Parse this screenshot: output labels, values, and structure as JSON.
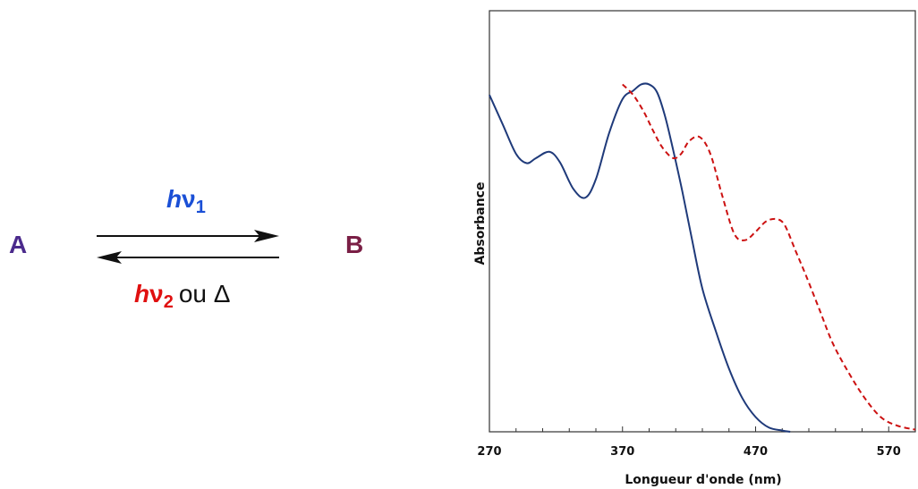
{
  "scheme": {
    "species_a": "A",
    "species_b": "B",
    "forward_h": "h",
    "forward_nu": "ν",
    "forward_sub": "1",
    "reverse_h": "h",
    "reverse_nu": "ν",
    "reverse_sub": "2",
    "reverse_suffix": "ou Δ",
    "colors": {
      "a": "#4b2a8c",
      "b": "#7a1f45",
      "forward": "#1a4fd6",
      "reverse": "#e01010"
    }
  },
  "chart_data": {
    "type": "line",
    "title": "",
    "xlabel": "Longueur d'onde (nm)",
    "ylabel": "Absorbance",
    "xlim": [
      270,
      590
    ],
    "ylim": [
      0,
      1.0
    ],
    "xticks": [
      270,
      370,
      470,
      570
    ],
    "grid": false,
    "legend": "none",
    "series": [
      {
        "color": "#1f3a7a",
        "style": "solid",
        "x": [
          270,
          280,
          290,
          298,
          305,
          315,
          323,
          333,
          342,
          350,
          360,
          370,
          378,
          384,
          390,
          396,
          402,
          408,
          415,
          422,
          430,
          440,
          450,
          460,
          470,
          480,
          490,
          496
        ],
        "y": [
          0.8,
          0.73,
          0.66,
          0.638,
          0.65,
          0.665,
          0.64,
          0.577,
          0.556,
          0.6,
          0.71,
          0.79,
          0.81,
          0.825,
          0.825,
          0.806,
          0.749,
          0.67,
          0.57,
          0.46,
          0.34,
          0.24,
          0.15,
          0.08,
          0.035,
          0.01,
          0.003,
          0
        ]
      },
      {
        "color": "#cc1111",
        "style": "dashed",
        "x": [
          370,
          378,
          386,
          393,
          400,
          408,
          414,
          420,
          428,
          436,
          445,
          454,
          462,
          470,
          478,
          486,
          492,
          500,
          508,
          518,
          528,
          540,
          552,
          564,
          576,
          590
        ],
        "y": [
          0.825,
          0.8,
          0.76,
          0.715,
          0.675,
          0.65,
          0.66,
          0.69,
          0.7,
          0.66,
          0.56,
          0.47,
          0.455,
          0.475,
          0.5,
          0.505,
          0.49,
          0.43,
          0.37,
          0.29,
          0.21,
          0.14,
          0.08,
          0.035,
          0.015,
          0.005
        ]
      }
    ]
  }
}
